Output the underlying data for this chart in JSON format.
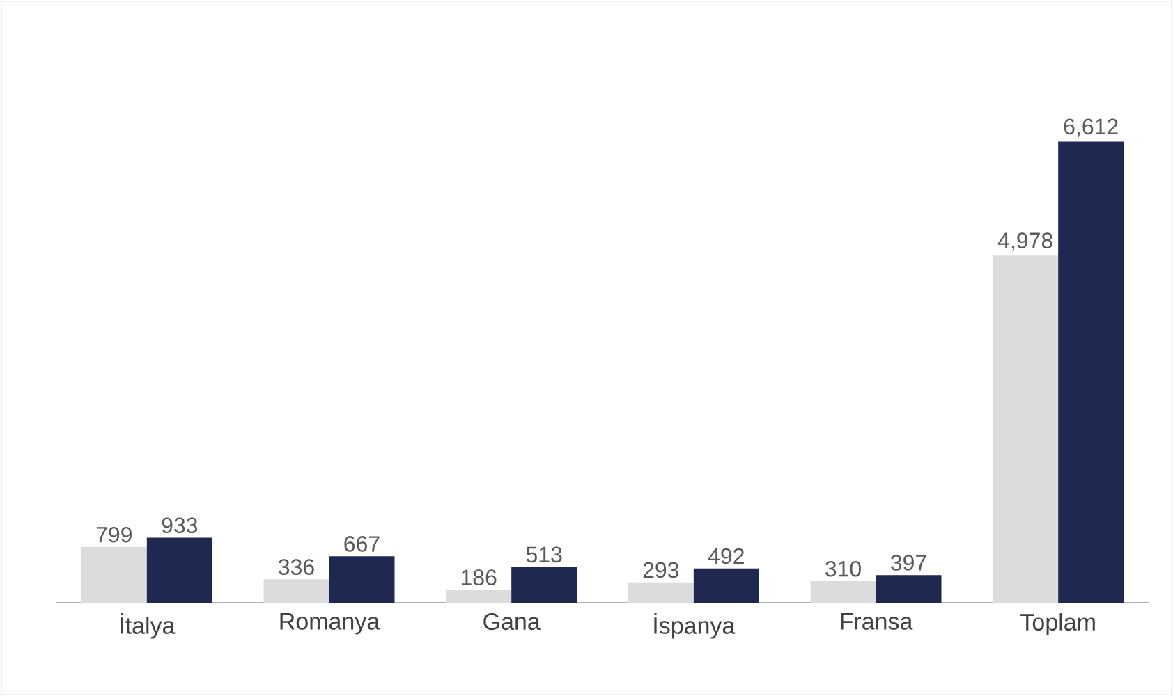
{
  "chart_data": {
    "type": "bar",
    "categories": [
      "İtalya",
      "Romanya",
      "Gana",
      "İspanya",
      "Fransa",
      "Toplam"
    ],
    "series": [
      {
        "color": "#dcdcdc",
        "values": [
          799,
          336,
          186,
          293,
          310,
          4978
        ],
        "value_labels": [
          "799",
          "336",
          "186",
          "293",
          "310",
          "4,978"
        ]
      },
      {
        "color": "#1f2850",
        "values": [
          933,
          667,
          513,
          492,
          397,
          6612
        ],
        "value_labels": [
          "933",
          "667",
          "513",
          "492",
          "397",
          "6,612"
        ]
      }
    ]
  }
}
